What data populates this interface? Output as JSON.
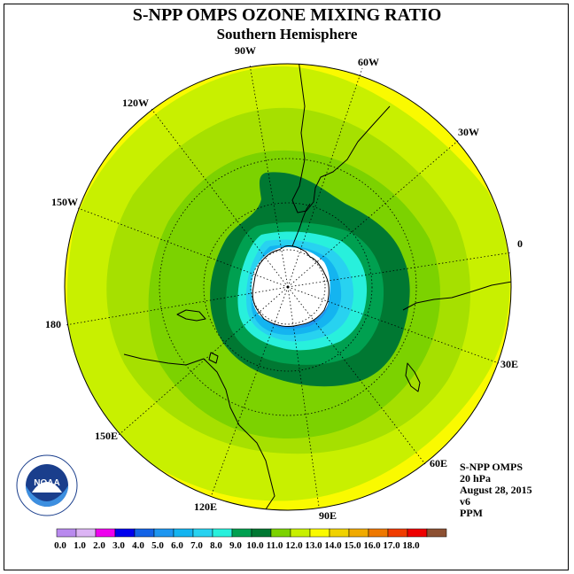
{
  "title": "S-NPP OMPS OZONE MIXING RATIO",
  "subtitle": "Southern Hemisphere",
  "longitude_labels": {
    "lon_90w": "90W",
    "lon_60w": "60W",
    "lon_120w": "120W",
    "lon_30w": "30W",
    "lon_150w": "150W",
    "lon_0": "0",
    "lon_180": "180",
    "lon_30e": "30E",
    "lon_150e": "150E",
    "lon_60e": "60E",
    "lon_120e": "120E",
    "lon_90e": "90E"
  },
  "info": {
    "instrument": "S-NPP OMPS",
    "level": "20 hPa",
    "date": "August 28, 2015",
    "version": "v6",
    "units": "PPM"
  },
  "logo_text": "NOAA",
  "colorbar": {
    "labels": [
      "0.0",
      "1.0",
      "2.0",
      "3.0",
      "4.0",
      "5.0",
      "6.0",
      "7.0",
      "8.0",
      "9.0",
      "10.0",
      "11.0",
      "12.0",
      "13.0",
      "14.0",
      "15.0",
      "16.0",
      "17.0",
      "18.0"
    ],
    "colors": [
      "#b98aee",
      "#dcb4f4",
      "#ee00ee",
      "#0000ee",
      "#1463e6",
      "#1e96f0",
      "#14b4f0",
      "#28d2f0",
      "#28f0dc",
      "#00a050",
      "#007832",
      "#7cd200",
      "#c8f000",
      "#fafa00",
      "#f0d200",
      "#f0aa00",
      "#ee7800",
      "#f03c00",
      "#ee0000",
      "#8c5032"
    ]
  },
  "ozone_levels": [
    {
      "label": "12.0-13.0",
      "color": "#c8f000"
    },
    {
      "label": "11.0-12.0",
      "color": "#a6e000"
    },
    {
      "label": "10.0-11.0",
      "color": "#7cd200"
    },
    {
      "label": "9.0-10.0",
      "color": "#007832"
    },
    {
      "label": "8.0-9.0",
      "color": "#00a050"
    },
    {
      "label": "7.0-8.0",
      "color": "#28f0dc"
    },
    {
      "label": "6.0-7.0",
      "color": "#28d2f0"
    },
    {
      "label": "5.0-6.0",
      "color": "#14b4f0"
    },
    {
      "label": "4.0-5.0",
      "color": "#1e96f0"
    }
  ],
  "outer_color": "#fafa00",
  "no_data_color": "#ffffff"
}
